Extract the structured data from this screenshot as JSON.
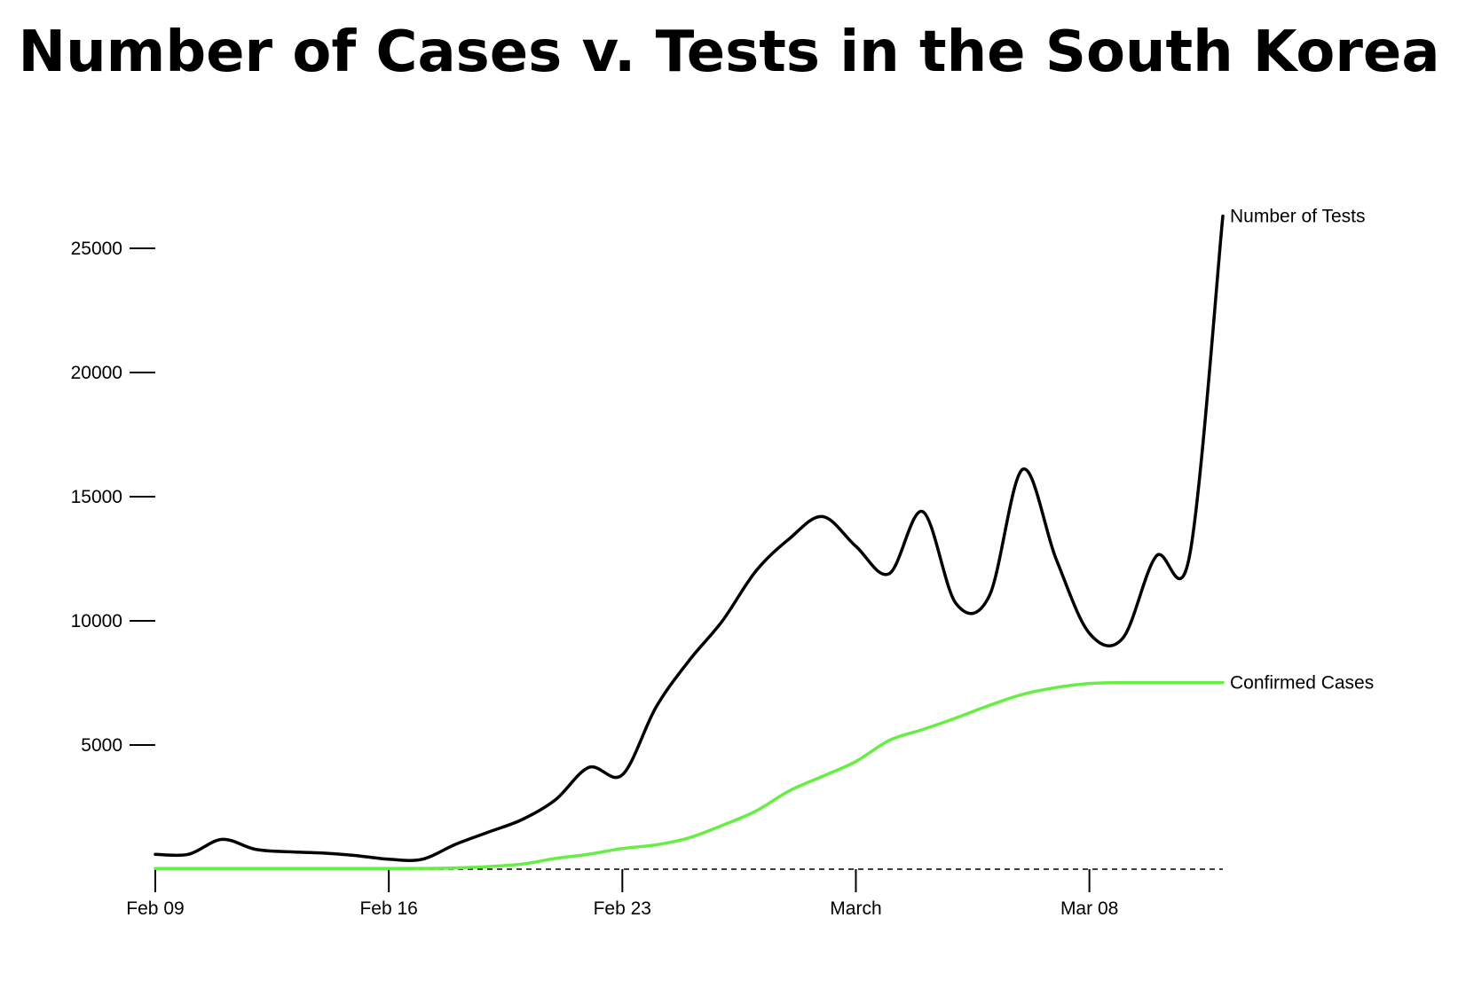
{
  "chart_data": {
    "type": "line",
    "title": "Number of Cases v. Tests in the South Korea",
    "xlabel": "",
    "ylabel": "",
    "x": [
      "2020-02-09",
      "2020-02-10",
      "2020-02-11",
      "2020-02-12",
      "2020-02-13",
      "2020-02-14",
      "2020-02-15",
      "2020-02-16",
      "2020-02-17",
      "2020-02-18",
      "2020-02-19",
      "2020-02-20",
      "2020-02-21",
      "2020-02-22",
      "2020-02-23",
      "2020-02-24",
      "2020-02-25",
      "2020-02-26",
      "2020-02-27",
      "2020-02-28",
      "2020-02-29",
      "2020-03-01",
      "2020-03-02",
      "2020-03-03",
      "2020-03-04",
      "2020-03-05",
      "2020-03-06",
      "2020-03-07",
      "2020-03-08",
      "2020-03-09",
      "2020-03-10",
      "2020-03-11",
      "2020-03-12"
    ],
    "x_ticks": [
      {
        "date": "2020-02-09",
        "label": "Feb 09"
      },
      {
        "date": "2020-02-16",
        "label": "Feb 16"
      },
      {
        "date": "2020-02-23",
        "label": "Feb 23"
      },
      {
        "date": "2020-03-01",
        "label": "March"
      },
      {
        "date": "2020-03-08",
        "label": "Mar 08"
      }
    ],
    "y_ticks": [
      5000,
      10000,
      15000,
      20000,
      25000
    ],
    "ylim": [
      0,
      26500
    ],
    "grid": false,
    "baseline": "dashed",
    "legend": "end-of-line labels",
    "series": [
      {
        "name": "Number of Tests",
        "color": "#000000",
        "values": [
          600,
          600,
          1200,
          800,
          700,
          650,
          550,
          400,
          400,
          1000,
          1500,
          2000,
          2800,
          4100,
          3800,
          6500,
          8400,
          10000,
          12000,
          13300,
          14200,
          13000,
          11900,
          14400,
          10700,
          11000,
          16100,
          12500,
          9500,
          9300,
          12600,
          12600,
          26300
        ]
      },
      {
        "name": "Confirmed Cases",
        "color": "#66ee44",
        "values": [
          27,
          27,
          28,
          28,
          28,
          28,
          29,
          30,
          31,
          51,
          104,
          204,
          433,
          602,
          833,
          977,
          1261,
          1766,
          2337,
          3150,
          3736,
          4335,
          5186,
          5621,
          6088,
          6593,
          7041,
          7313,
          7478,
          7513,
          7513,
          7513,
          7513
        ]
      }
    ]
  }
}
